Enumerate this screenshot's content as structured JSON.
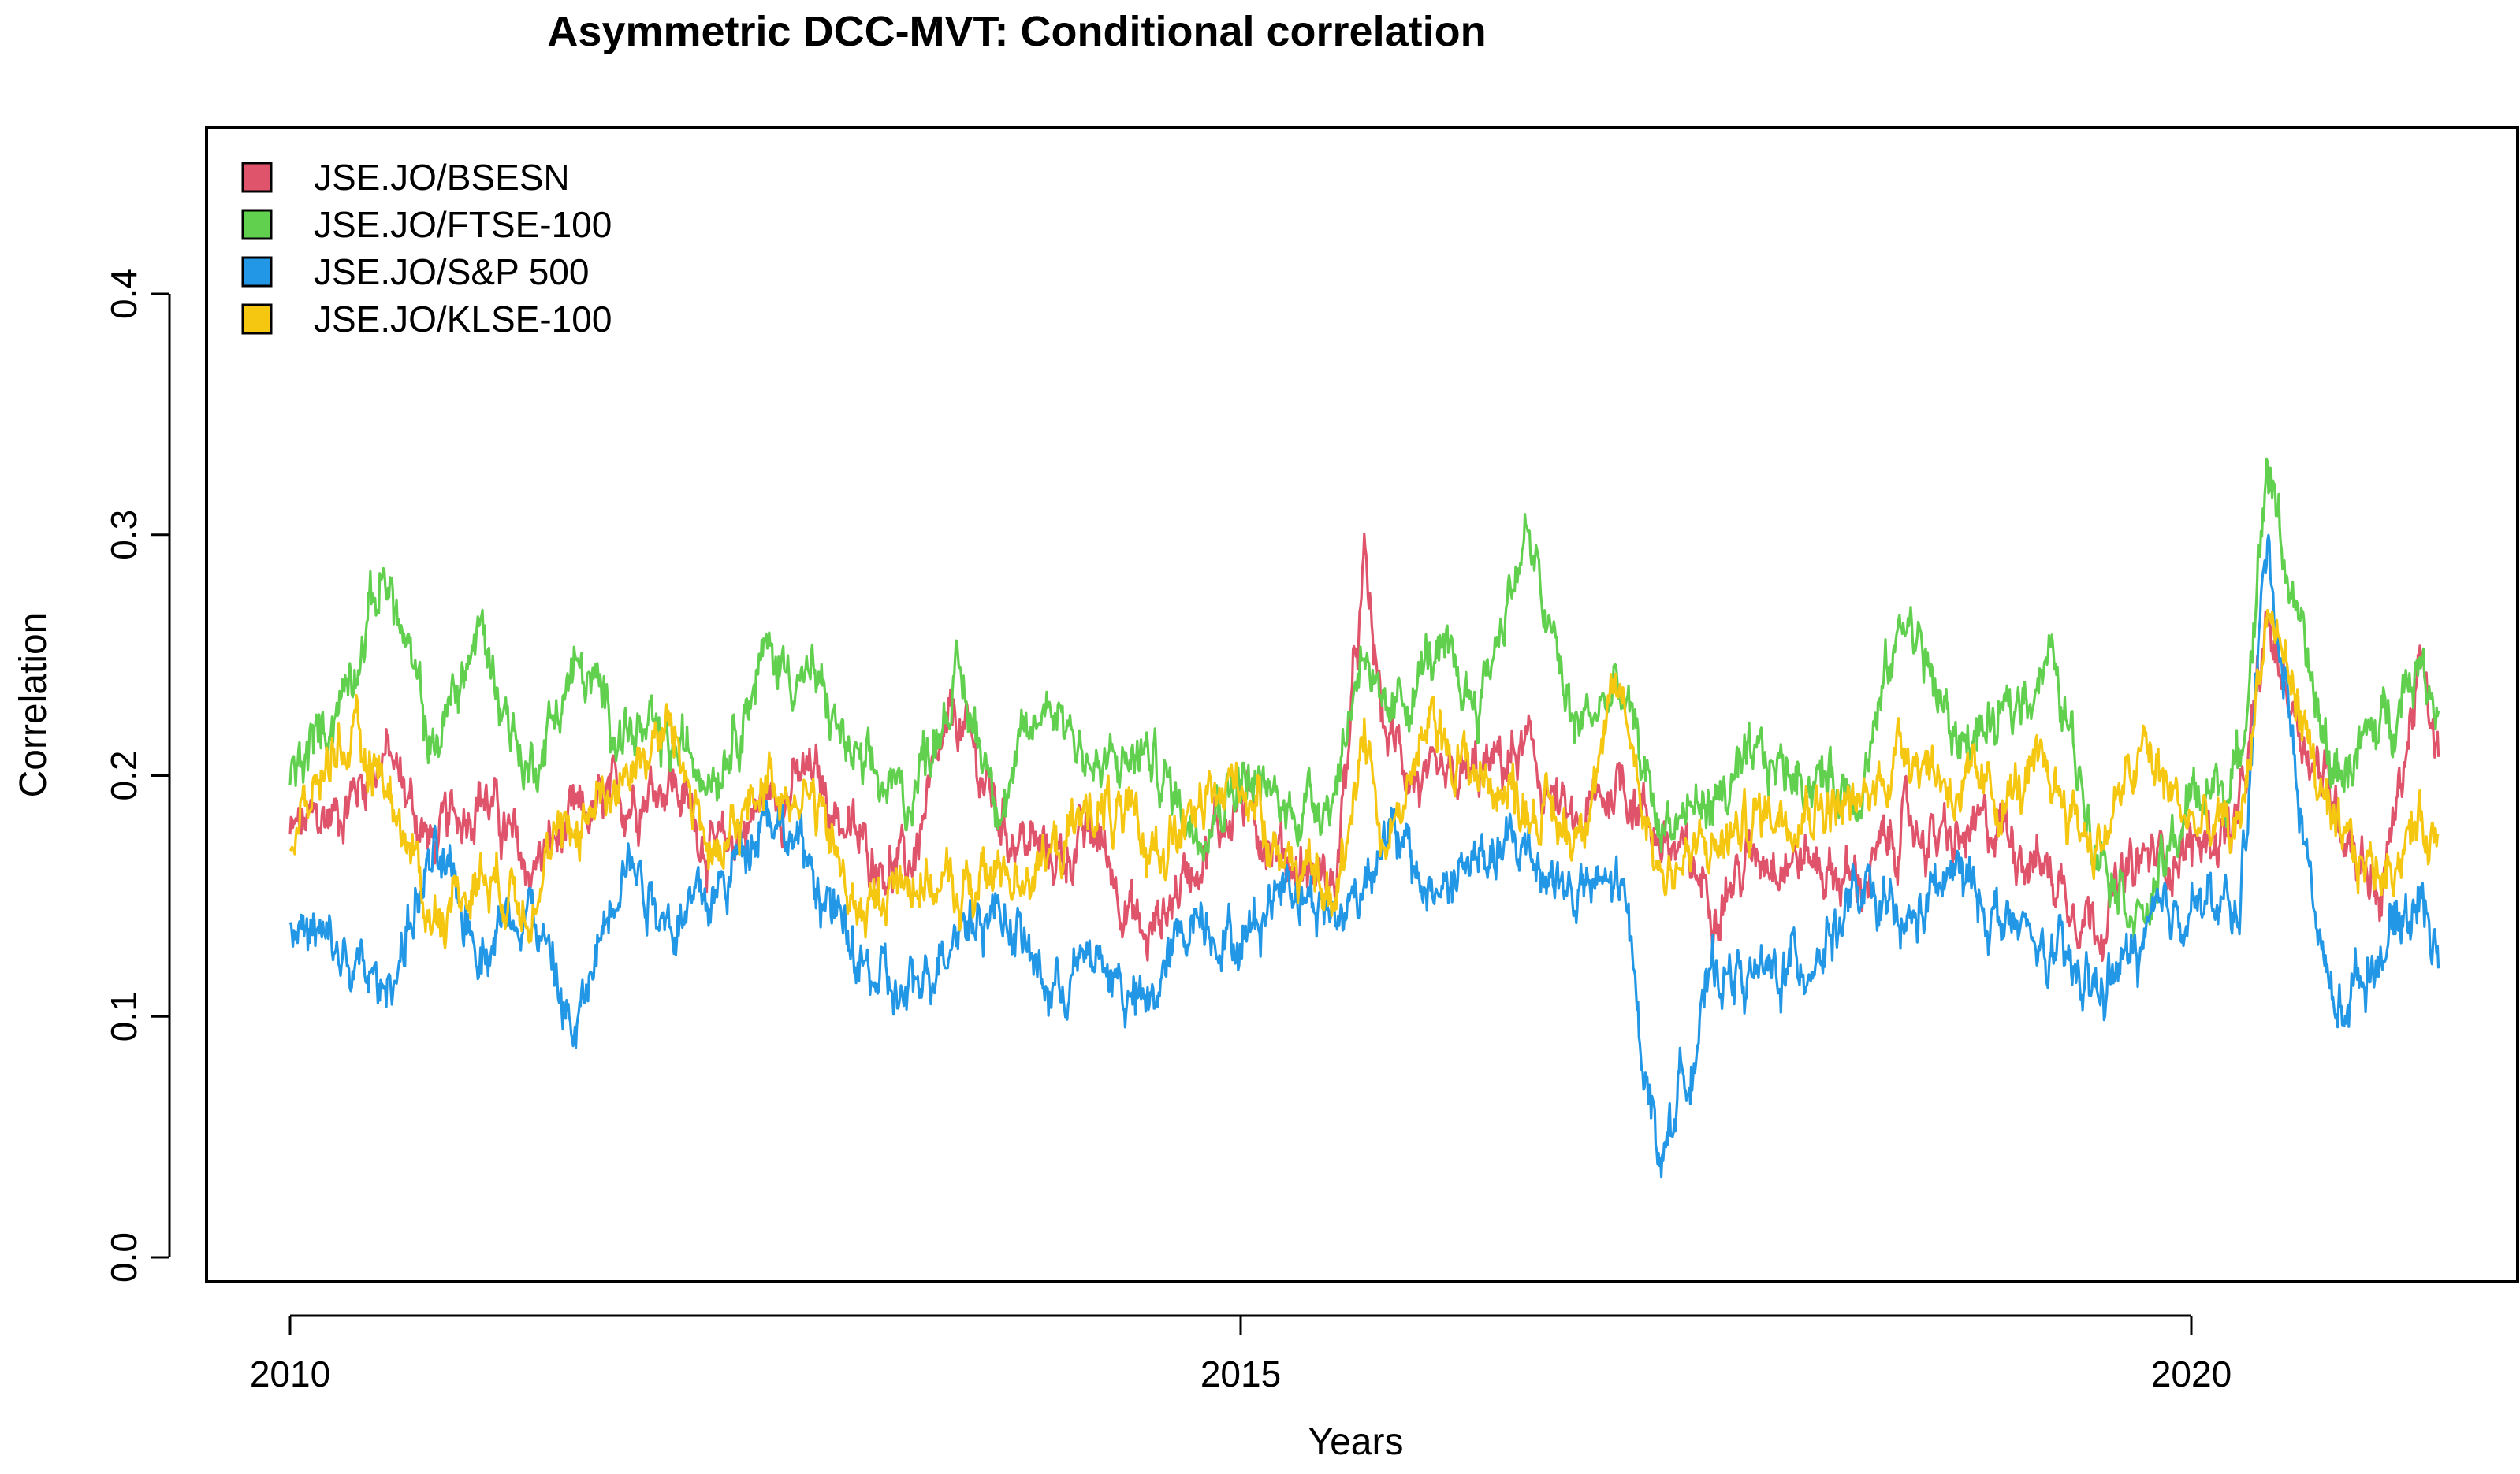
{
  "chart_data": {
    "type": "line",
    "title": "Asymmetric DCC-MVT: Conditional correlation",
    "xlabel": "Years",
    "ylabel": "Correlation",
    "xlim": [
      2010,
      2021.3
    ],
    "ylim": [
      0.0,
      0.4
    ],
    "x_ticks": [
      2010,
      2015,
      2020
    ],
    "x_tick_labels": [
      "2010",
      "2015",
      "2020"
    ],
    "y_ticks": [
      0.0,
      0.1,
      0.2,
      0.3,
      0.4
    ],
    "y_tick_labels": [
      "0.0",
      "0.1",
      "0.2",
      "0.3",
      "0.4"
    ],
    "legend_position": "top-left",
    "series": [
      {
        "name": "JSE.JO/BSESN",
        "color": "#DF536B",
        "x": [
          2010.0,
          2010.25,
          2010.5,
          2010.75,
          2011.0,
          2011.25,
          2011.5,
          2011.75,
          2012.0,
          2012.25,
          2012.5,
          2012.75,
          2013.0,
          2013.25,
          2013.5,
          2013.75,
          2014.0,
          2014.25,
          2014.5,
          2014.75,
          2015.0,
          2015.25,
          2015.5,
          2015.65,
          2015.75,
          2016.0,
          2016.25,
          2016.5,
          2016.75,
          2017.0,
          2017.2,
          2017.5,
          2017.75,
          2018.0,
          2018.25,
          2018.5,
          2018.75,
          2019.0,
          2019.25,
          2019.5,
          2019.75,
          2020.0,
          2020.25,
          2020.4,
          2020.6,
          2020.75,
          2021.0,
          2021.2,
          2021.3
        ],
        "y": [
          0.175,
          0.185,
          0.21,
          0.17,
          0.195,
          0.16,
          0.18,
          0.19,
          0.2,
          0.165,
          0.19,
          0.2,
          0.17,
          0.16,
          0.225,
          0.18,
          0.165,
          0.175,
          0.13,
          0.165,
          0.19,
          0.165,
          0.155,
          0.285,
          0.22,
          0.19,
          0.2,
          0.21,
          0.175,
          0.2,
          0.175,
          0.15,
          0.17,
          0.165,
          0.155,
          0.18,
          0.17,
          0.18,
          0.16,
          0.14,
          0.165,
          0.17,
          0.18,
          0.26,
          0.215,
          0.19,
          0.15,
          0.245,
          0.205
        ]
      },
      {
        "name": "JSE.JO/FTSE-100",
        "color": "#61D04F",
        "x": [
          2010.0,
          2010.25,
          2010.5,
          2010.75,
          2011.0,
          2011.25,
          2011.5,
          2011.75,
          2012.0,
          2012.25,
          2012.5,
          2012.75,
          2013.0,
          2013.25,
          2013.5,
          2013.75,
          2014.0,
          2014.25,
          2014.5,
          2014.75,
          2015.0,
          2015.25,
          2015.5,
          2015.65,
          2015.75,
          2016.0,
          2016.25,
          2016.5,
          2016.75,
          2017.0,
          2017.2,
          2017.5,
          2017.75,
          2018.0,
          2018.25,
          2018.5,
          2018.75,
          2019.0,
          2019.25,
          2019.5,
          2019.75,
          2020.0,
          2020.25,
          2020.4,
          2020.6,
          2020.75,
          2021.0,
          2021.2,
          2021.3
        ],
        "y": [
          0.195,
          0.23,
          0.285,
          0.21,
          0.26,
          0.2,
          0.245,
          0.22,
          0.21,
          0.205,
          0.25,
          0.24,
          0.2,
          0.19,
          0.24,
          0.19,
          0.235,
          0.2,
          0.21,
          0.18,
          0.2,
          0.185,
          0.195,
          0.26,
          0.215,
          0.25,
          0.23,
          0.3,
          0.22,
          0.235,
          0.18,
          0.19,
          0.205,
          0.2,
          0.195,
          0.27,
          0.215,
          0.22,
          0.25,
          0.175,
          0.14,
          0.19,
          0.2,
          0.33,
          0.245,
          0.2,
          0.22,
          0.25,
          0.23
        ]
      },
      {
        "name": "JSE.JO/S&P 500",
        "color": "#2297E6",
        "x": [
          2010.0,
          2010.25,
          2010.5,
          2010.75,
          2011.0,
          2011.25,
          2011.5,
          2011.75,
          2012.0,
          2012.25,
          2012.5,
          2012.75,
          2013.0,
          2013.25,
          2013.5,
          2013.75,
          2014.0,
          2014.25,
          2014.5,
          2014.75,
          2015.0,
          2015.25,
          2015.5,
          2015.65,
          2015.75,
          2016.0,
          2016.25,
          2016.5,
          2016.75,
          2017.0,
          2017.2,
          2017.5,
          2017.75,
          2018.0,
          2018.25,
          2018.5,
          2018.75,
          2019.0,
          2019.25,
          2019.5,
          2019.75,
          2020.0,
          2020.25,
          2020.4,
          2020.6,
          2020.75,
          2021.0,
          2021.2,
          2021.3
        ],
        "y": [
          0.14,
          0.125,
          0.11,
          0.165,
          0.13,
          0.15,
          0.09,
          0.17,
          0.14,
          0.15,
          0.19,
          0.16,
          0.12,
          0.105,
          0.14,
          0.145,
          0.11,
          0.125,
          0.1,
          0.145,
          0.13,
          0.16,
          0.14,
          0.155,
          0.18,
          0.15,
          0.165,
          0.17,
          0.15,
          0.155,
          0.04,
          0.12,
          0.115,
          0.125,
          0.15,
          0.135,
          0.16,
          0.14,
          0.125,
          0.11,
          0.13,
          0.15,
          0.14,
          0.3,
          0.17,
          0.1,
          0.13,
          0.15,
          0.13
        ]
      },
      {
        "name": "JSE.JO/KLSE-100",
        "color": "#F5C710",
        "x": [
          2010.0,
          2010.25,
          2010.5,
          2010.75,
          2011.0,
          2011.25,
          2011.5,
          2011.75,
          2012.0,
          2012.25,
          2012.5,
          2012.75,
          2013.0,
          2013.25,
          2013.5,
          2013.75,
          2014.0,
          2014.25,
          2014.5,
          2014.75,
          2015.0,
          2015.25,
          2015.5,
          2015.65,
          2015.75,
          2016.0,
          2016.25,
          2016.5,
          2016.75,
          2017.0,
          2017.2,
          2017.5,
          2017.75,
          2018.0,
          2018.25,
          2018.5,
          2018.75,
          2019.0,
          2019.25,
          2019.5,
          2019.75,
          2020.0,
          2020.25,
          2020.4,
          2020.6,
          2020.75,
          2021.0,
          2021.2,
          2021.3
        ],
        "y": [
          0.17,
          0.215,
          0.2,
          0.14,
          0.16,
          0.15,
          0.18,
          0.2,
          0.22,
          0.16,
          0.2,
          0.19,
          0.14,
          0.16,
          0.15,
          0.16,
          0.165,
          0.19,
          0.17,
          0.18,
          0.2,
          0.165,
          0.145,
          0.225,
          0.17,
          0.22,
          0.2,
          0.19,
          0.175,
          0.235,
          0.16,
          0.17,
          0.185,
          0.19,
          0.185,
          0.215,
          0.195,
          0.19,
          0.2,
          0.17,
          0.21,
          0.18,
          0.175,
          0.27,
          0.22,
          0.17,
          0.16,
          0.18,
          0.175
        ]
      }
    ]
  }
}
